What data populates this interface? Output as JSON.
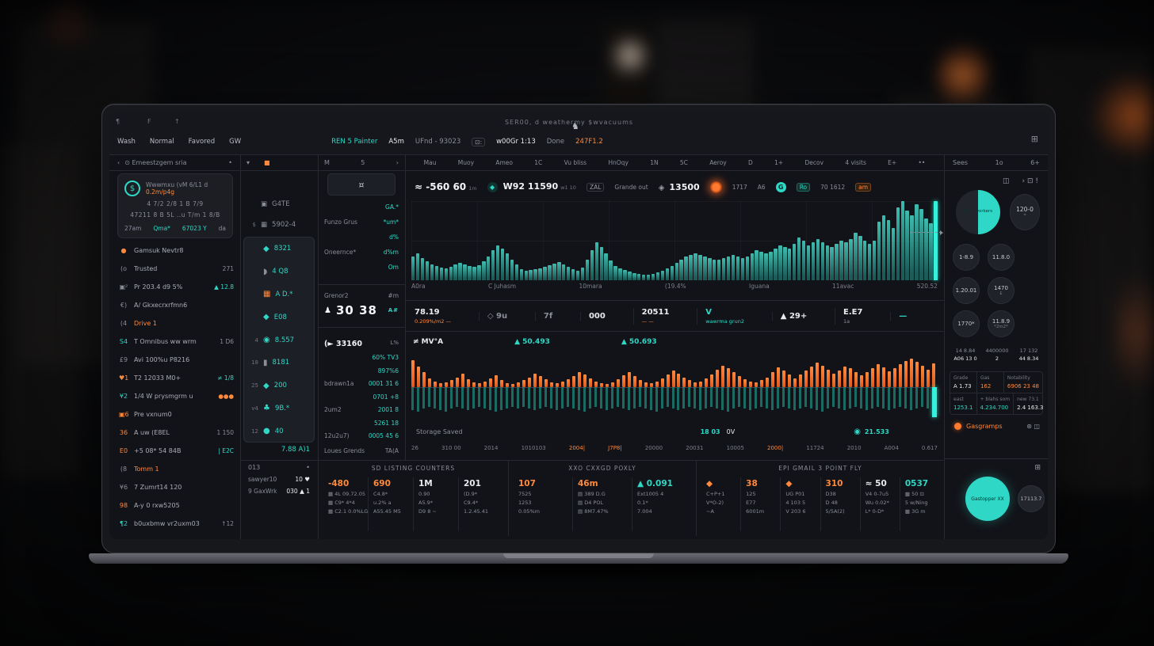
{
  "colors": {
    "teal": "#2fd8c6",
    "orange": "#ff8a3c",
    "text": "#e8eaef",
    "muted": "#8a8e99"
  },
  "topbar": {
    "decor": [
      "¶",
      "F",
      "↑"
    ],
    "tagline": "SER00, d weathermy $wvacuums",
    "logo_icon": "♞",
    "menu": [
      "Wash",
      "Normal",
      "Favored",
      "GW"
    ],
    "status": [
      {
        "t": "REN 5 Painter",
        "c": "teal"
      },
      {
        "t": "A5m",
        "c": "text"
      },
      {
        "t": "UFnd - 93023",
        "c": "muted"
      },
      {
        "t": "⊡:",
        "c": "chip"
      },
      {
        "t": "w00Gr 1:13",
        "c": "text"
      },
      {
        "t": "Done",
        "c": "muted"
      },
      {
        "t": "247F1.2",
        "c": "orange"
      }
    ],
    "grid_icon": "⊞"
  },
  "sidebar": {
    "header": {
      "back": "‹",
      "title": "⊙ Emeestzgem sria",
      "dot": "•"
    },
    "card": {
      "icon": "$",
      "line1": "Wwwmxu (vM 6/L1 d",
      "line1_hl": "0.2m/p4g",
      "line2": "4    7/2     2/8  1 B  7/9",
      "line3": "47211 8 B 5L ..u    T/m 1 8/B",
      "tabs": [
        {
          "t": "27am",
          "c": "muted"
        },
        {
          "t": "Qma*",
          "c": "teal"
        },
        {
          "t": "67023 Y",
          "c": "teal"
        },
        {
          "t": "da",
          "c": "muted"
        }
      ]
    },
    "items": [
      {
        "icon": "●",
        "ic": "orange",
        "label": "Gamsuk Nevtr8",
        "value": "",
        "vc": "muted"
      },
      {
        "icon": "(ο",
        "ic": "muted",
        "label": "Trusted",
        "value": "271",
        "vc": "muted"
      },
      {
        "icon": "▣²",
        "ic": "muted",
        "label": "Pr 203.4 d9 5%",
        "value": "▲ 12.8",
        "vc": "teal"
      },
      {
        "icon": "€)",
        "ic": "muted",
        "label": "A/ Gkxecrxrfmn6",
        "value": "",
        "vc": "muted"
      },
      {
        "icon": "(4",
        "ic": "muted",
        "label": "Drive 1",
        "value": "",
        "vc": "muted",
        "lc": "orange"
      },
      {
        "icon": "S4",
        "ic": "teal",
        "label": "T Omnibus ww wrm",
        "value": "1 D6",
        "vc": "muted"
      },
      {
        "icon": "£9",
        "ic": "muted",
        "label": "Avi 100%u P8216",
        "value": "",
        "vc": "muted"
      },
      {
        "icon": "♥1",
        "ic": "orange",
        "label": "T2 12033 M0+",
        "value": "≠ 1/8",
        "vc": "teal"
      },
      {
        "icon": "¥2",
        "ic": "teal",
        "label": "1/4 W prysmgrm u",
        "value": "●●●",
        "vc": "orange"
      },
      {
        "icon": "▣6",
        "ic": "orange",
        "label": "Pre vxnum0",
        "value": "",
        "vc": "muted"
      },
      {
        "icon": "36",
        "ic": "orange",
        "label": "A uw (E8EL",
        "value": "1  150",
        "vc": "muted"
      },
      {
        "icon": "E0",
        "ic": "orange",
        "label": "+5 08* 54 84B",
        "value": "| E2C",
        "vc": "teal"
      },
      {
        "icon": "(8",
        "ic": "muted",
        "label": "Tomm 1",
        "value": "",
        "vc": "muted",
        "lc": "orange"
      },
      {
        "icon": "¥6",
        "ic": "muted",
        "label": "7 Zumrt14 120",
        "value": "",
        "vc": "muted"
      },
      {
        "icon": "98",
        "ic": "orange",
        "label": "A-y 0 rxw5205",
        "value": "",
        "vc": "muted"
      },
      {
        "icon": "¶2",
        "ic": "teal",
        "label": "b0uxbmw vr2uxm03",
        "value": "↑12",
        "vc": "muted"
      }
    ]
  },
  "coinlist": {
    "header": {
      "caret": "▾",
      "square": "■"
    },
    "top": [
      {
        "icon": "▣",
        "ic": "muted",
        "pre": "",
        "value": "G4TE",
        "vc": "muted"
      },
      {
        "icon": "▦",
        "ic": "muted",
        "pre": "$",
        "value": "5902-4",
        "vc": "muted"
      }
    ],
    "items": [
      {
        "icon": "◆",
        "ic": "teal",
        "pre": "",
        "value": "8321"
      },
      {
        "icon": "◗",
        "ic": "muted",
        "pre": "",
        "value": "4 Q8"
      },
      {
        "icon": "▦",
        "ic": "orange",
        "pre": "",
        "value": "A D.*"
      },
      {
        "icon": "◆",
        "ic": "teal",
        "pre": "",
        "value": "E08"
      },
      {
        "icon": "◉",
        "ic": "teal",
        "pre": "4",
        "value": "8.557"
      },
      {
        "icon": "▮",
        "ic": "muted",
        "pre": "18",
        "value": "8181"
      },
      {
        "icon": "◆",
        "ic": "teal",
        "pre": "25",
        "value": "200"
      },
      {
        "icon": "♣",
        "ic": "teal",
        "pre": "v4",
        "value": "9B.*"
      },
      {
        "icon": "●",
        "ic": "teal",
        "pre": "12",
        "value": "40"
      }
    ],
    "footer": "7.88 A)1",
    "sub": {
      "title": "013",
      "dot": "•",
      "rows": [
        {
          "pre": "",
          "label": "sawyer10",
          "value": "10 ♥"
        },
        {
          "pre": "9",
          "label": "GaxWrk",
          "value": "030 ▲ 1"
        }
      ]
    }
  },
  "orderpanel": {
    "header": {
      "l": "M",
      "c": "5",
      "r": "›"
    },
    "iconbox": "¤",
    "rows": [
      {
        "l": "",
        "v": "GA.*"
      },
      {
        "l": "Funzo Grus",
        "v": "*um*"
      },
      {
        "l": "",
        "v": "d%"
      },
      {
        "l": "Oneernce*",
        "v": "d%m"
      },
      {
        "l": "",
        "v": "Om"
      }
    ],
    "mid": {
      "l": "Grenor2",
      "v": "#m"
    },
    "big": {
      "icon": "♟",
      "t": "30 38",
      "v": "A#"
    },
    "price_title": "(► 33160",
    "price_sub": "L%",
    "depth": [
      {
        "l": "",
        "v": "60% TV3"
      },
      {
        "l": "",
        "v": "897%6"
      },
      {
        "l": "bdrawn1a",
        "v": "0001 31 6"
      },
      {
        "l": "",
        "v": "0701 +8"
      },
      {
        "l": "2um2",
        "v": "2001 8"
      },
      {
        "l": "",
        "v": "5261 18"
      },
      {
        "l": "12u2u7)",
        "v": "0005 45 6"
      }
    ],
    "footer": {
      "l": "Loues Grends",
      "v": "TA(A"
    }
  },
  "main": {
    "tabs": [
      "Mau",
      "Muoy",
      "Ameo",
      "1C",
      "Vu bliss",
      "HnOqy",
      "1N",
      "5C",
      "Aeroy",
      "D",
      "1+",
      "Decov",
      "4 visits",
      "E+",
      "••"
    ],
    "ticker": [
      {
        "type": "text",
        "t": "≈ -560 60",
        "s": "1m"
      },
      {
        "type": "coin",
        "icon": "◆",
        "t": "W92 11590",
        "s": "w1 10"
      },
      {
        "type": "chip",
        "t": "ZAL"
      },
      {
        "type": "muted",
        "t": "Grande out"
      },
      {
        "type": "coin2",
        "icon": "◈",
        "t": "13500"
      },
      {
        "type": "glow"
      },
      {
        "type": "muted",
        "t": "1717"
      },
      {
        "type": "muted",
        "t": "A6"
      },
      {
        "type": "tealcircle",
        "t": "G"
      },
      {
        "type": "chipteal",
        "t": "Ro"
      },
      {
        "type": "muted",
        "t": "70  1612"
      },
      {
        "type": "chiporange",
        "t": "am"
      }
    ],
    "axis1": [
      "A0ra",
      "C  Juhasm",
      "10mara",
      "(19.4%",
      "Iguana",
      "11avac",
      "520.52"
    ],
    "stats": [
      {
        "v": "78.19",
        "vc": "text",
        "s": "0.209%/m2 —",
        "sc": "orange"
      },
      {
        "v": "◇ 9u",
        "vc": "muted",
        "s": "",
        "sc": "muted"
      },
      {
        "v": "7f",
        "vc": "muted",
        "s": "",
        "sc": "muted"
      },
      {
        "v": "000",
        "vc": "text",
        "s": "",
        "sc": "muted"
      },
      {
        "v": "20511",
        "vc": "text",
        "s": "— —",
        "sc": "orange"
      },
      {
        "v": "V",
        "vc": "teal",
        "s": "wawrma grun2",
        "sc": "teal"
      },
      {
        "v": "▲ 29+",
        "vc": "text",
        "s": "",
        "sc": "muted"
      },
      {
        "v": "E.E7",
        "vc": "text",
        "s": "1a",
        "sc": "muted"
      },
      {
        "v": "—",
        "vc": "teal",
        "s": "",
        "sc": "muted"
      }
    ],
    "chart2_header": [
      {
        "t": "≠ MV°A",
        "c": "text"
      },
      {
        "t": "▲ 50.493",
        "c": "teal"
      },
      {
        "t": "▲ 50.693",
        "c": "teal"
      }
    ],
    "inforow": {
      "l": "Storage Saved",
      "c1": "18 03",
      "c2": "0V",
      "ric": "◉",
      "r": "21.533"
    },
    "axis2": [
      {
        "t": "26",
        "hl": 0
      },
      {
        "t": "310 00",
        "hl": 0
      },
      {
        "t": "2014",
        "hl": 0
      },
      {
        "t": "1010103",
        "hl": 0
      },
      {
        "t": "2004|",
        "hl": 1
      },
      {
        "t": "J7P8|",
        "hl": 1
      },
      {
        "t": "20000",
        "hl": 0
      },
      {
        "t": "20031",
        "hl": 0
      },
      {
        "t": "10005",
        "hl": 0
      },
      {
        "t": "2000|",
        "hl": 1
      },
      {
        "t": "11724",
        "hl": 0
      },
      {
        "t": "2010",
        "hl": 0
      },
      {
        "t": "A004",
        "hl": 0
      },
      {
        "t": "0.617",
        "hl": 0
      }
    ]
  },
  "bottom_boxes": [
    {
      "header": "SD LISTING COUNTERS",
      "cols": [
        {
          "big": "-480",
          "bc": "orange",
          "rows": [
            "▦ 4L 09.72.05",
            "▦ C9* 4*4",
            "▦ C2.1 0.0%LG"
          ]
        },
        {
          "big": "690",
          "bc": "orange",
          "rows": [
            "C4.8*",
            "u.2% a",
            "A55.45 M5"
          ]
        },
        {
          "big": "1M",
          "bc": "text",
          "rows": [
            "0.90",
            "A5.9*",
            "D9 8 ~"
          ]
        },
        {
          "big": "201",
          "bc": "text",
          "rows": [
            "(D.9*",
            "C9.4*",
            "1.2.45.41"
          ]
        }
      ]
    },
    {
      "header": "XXO CXXGD POXLY",
      "cols": [
        {
          "big": "107",
          "bc": "orange",
          "rows": [
            "7525",
            "1253",
            "0.05%m"
          ]
        },
        {
          "big": "46m",
          "bc": "orange",
          "rows": [
            "▤ 389 D.G",
            "▤ D4 POL",
            "▤ 8M7.47%"
          ]
        },
        {
          "big": "▲ 0.091",
          "bc": "teal",
          "rows": [
            "Ext1005 4",
            "0.1*",
            "7.004"
          ]
        }
      ]
    },
    {
      "header": "EPI GMAIL 3 POINT FLY",
      "cols": [
        {
          "big": "◆",
          "bc": "orange",
          "rows": [
            "C+P+1",
            "V*O-2)",
            "~A"
          ]
        },
        {
          "big": "38",
          "bc": "orange",
          "rows": [
            "125",
            "E77",
            "6001m"
          ]
        },
        {
          "big": "◆",
          "bc": "orange",
          "rows": [
            "UG P01",
            "4 103 5",
            "V 203 6"
          ]
        },
        {
          "big": "310",
          "bc": "orange",
          "rows": [
            "D38",
            "D 48",
            "5/5A(2)"
          ]
        },
        {
          "big": "≈ 50",
          "bc": "text",
          "rows": [
            "V4 0-7u5",
            "Wu 0.02*",
            "L* 0-D*"
          ]
        },
        {
          "big": "0537",
          "bc": "teal",
          "rows": [
            "▩ 50 ⊡",
            "5 w/Ning",
            "▩ 3G m"
          ]
        }
      ]
    }
  ],
  "rightpanel": {
    "header": {
      "l": "Sees",
      "c": "1o",
      "r": "6+"
    },
    "people_icon": "◫",
    "tool_icons": "› ⊡ !",
    "donut_label": "Rat | workers",
    "donut_badge": {
      "v": "120-0",
      "s": "*"
    },
    "badges": [
      {
        "v": "1-8.9",
        "s": ""
      },
      {
        "v": "11.8.0",
        "s": ""
      },
      {
        "v": "1.20.01",
        "s": ""
      },
      {
        "v": "1470",
        "s": "£"
      },
      {
        "v": "1770*",
        "s": ""
      },
      {
        "v": "11.8.9",
        "s": "*2m2*"
      }
    ],
    "minitable": [
      {
        "a": "14 8.84",
        "b": "A06 13 0"
      },
      {
        "a": "4400000",
        "b": "2"
      },
      {
        "a": "17 132",
        "b": "44 8.34"
      }
    ],
    "table": [
      [
        {
          "h": "Grade",
          "v": "A 1.73",
          "vc": "text"
        },
        {
          "h": "Gas",
          "v": "162",
          "vc": "orange"
        },
        {
          "h": "Notability",
          "v": "6906 23 48",
          "vc": "orange"
        }
      ],
      [
        {
          "h": "east",
          "v": "1253.1",
          "vc": "teal"
        },
        {
          "h": "+ blahs som",
          "v": "4.234.700",
          "vc": "teal"
        },
        {
          "h": "new 73.1",
          "v": "2.4 163.3",
          "vc": "text"
        }
      ]
    ],
    "link": {
      "t": "Gasgramps"
    },
    "link_icons": "⊛ ◫",
    "bottom": {
      "window_icon": "⊞",
      "big_circle": "Gastopper XX",
      "small_circle": "17113.7"
    }
  },
  "charts": {
    "main_bars": {
      "type": "bar",
      "values": [
        30,
        34,
        28,
        24,
        20,
        18,
        16,
        15,
        17,
        20,
        22,
        20,
        18,
        17,
        19,
        24,
        30,
        38,
        44,
        40,
        34,
        26,
        20,
        14,
        12,
        13,
        14,
        15,
        17,
        19,
        21,
        23,
        20,
        17,
        14,
        12,
        16,
        26,
        38,
        48,
        42,
        34,
        25,
        18,
        15,
        13,
        11,
        9,
        8,
        7,
        7,
        8,
        10,
        12,
        15,
        18,
        22,
        26,
        30,
        32,
        34,
        32,
        30,
        28,
        26,
        26,
        28,
        30,
        32,
        30,
        28,
        30,
        34,
        38,
        36,
        34,
        36,
        40,
        44,
        42,
        40,
        46,
        54,
        50,
        44,
        48,
        52,
        48,
        44,
        42,
        46,
        50,
        48,
        52,
        60,
        56,
        50,
        46,
        50,
        74,
        82,
        76,
        66,
        92,
        100,
        88,
        82,
        96,
        90,
        78,
        72,
        100
      ],
      "highlight_last": true,
      "ylim": [
        0,
        100
      ]
    },
    "delta_bars": {
      "type": "bar",
      "up": [
        55,
        42,
        30,
        18,
        12,
        8,
        10,
        14,
        20,
        28,
        16,
        10,
        8,
        12,
        18,
        24,
        14,
        8,
        6,
        10,
        14,
        20,
        28,
        22,
        16,
        10,
        8,
        12,
        16,
        22,
        30,
        26,
        18,
        12,
        8,
        6,
        10,
        16,
        24,
        30,
        22,
        14,
        10,
        8,
        12,
        18,
        26,
        34,
        28,
        20,
        14,
        10,
        12,
        18,
        26,
        36,
        44,
        38,
        30,
        22,
        16,
        12,
        10,
        14,
        20,
        30,
        40,
        34,
        26,
        18,
        26,
        34,
        42,
        50,
        44,
        36,
        28,
        34,
        42,
        38,
        30,
        24,
        30,
        38,
        46,
        40,
        32,
        38,
        46,
        54,
        58,
        52,
        44,
        36,
        48
      ],
      "down": [
        32,
        34,
        30,
        28,
        30,
        32,
        34,
        30,
        28,
        30,
        32,
        30,
        28,
        30,
        32,
        34,
        32,
        30,
        28,
        30,
        28,
        30,
        32,
        30,
        28,
        30,
        32,
        30,
        28,
        30,
        32,
        34,
        30,
        28,
        30,
        32,
        30,
        28,
        30,
        32,
        30,
        28,
        30,
        32,
        34,
        30,
        28,
        30,
        32,
        30,
        28,
        30,
        32,
        30,
        28,
        30,
        32,
        34,
        30,
        28,
        30,
        32,
        30,
        28,
        30,
        32,
        30,
        28,
        30,
        32,
        30,
        28,
        30,
        32,
        34,
        30,
        28,
        30,
        32,
        30,
        28,
        30,
        32,
        30,
        28,
        30,
        32,
        30,
        28,
        30,
        32,
        30,
        28,
        30,
        36
      ],
      "highlight_last": true,
      "ylim": [
        -50,
        60
      ]
    }
  }
}
